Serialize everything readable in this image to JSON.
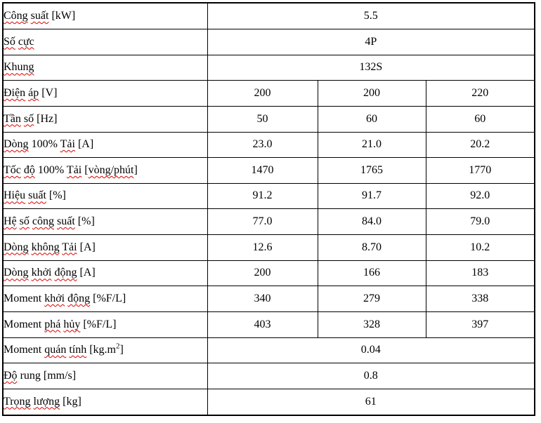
{
  "colors": {
    "border": "#000000",
    "text": "#000000",
    "spellcheck_underline": "#dd0000",
    "background": "#ffffff"
  },
  "table": {
    "rows": [
      {
        "label_text": "Công suất [kW]",
        "label": [
          {
            "t": "Công",
            "e": true
          },
          {
            "t": " "
          },
          {
            "t": "suất",
            "e": true
          },
          {
            "t": " [kW]"
          }
        ],
        "values": [
          "5.5"
        ]
      },
      {
        "label_text": "Số cực",
        "label": [
          {
            "t": "Số",
            "e": true
          },
          {
            "t": " "
          },
          {
            "t": "cực",
            "e": true
          }
        ],
        "values": [
          "4P"
        ]
      },
      {
        "label_text": "Khung",
        "label": [
          {
            "t": "Khung",
            "e": true
          }
        ],
        "values": [
          "132S"
        ]
      },
      {
        "label_text": "Điện áp [V]",
        "label": [
          {
            "t": "Điện",
            "e": true
          },
          {
            "t": " "
          },
          {
            "t": "áp",
            "e": true
          },
          {
            "t": " [V]"
          }
        ],
        "values": [
          "200",
          "200",
          "220"
        ]
      },
      {
        "label_text": "Tần số [Hz]",
        "label": [
          {
            "t": "Tần",
            "e": true
          },
          {
            "t": " "
          },
          {
            "t": "số",
            "e": true
          },
          {
            "t": " [Hz]"
          }
        ],
        "values": [
          "50",
          "60",
          "60"
        ]
      },
      {
        "label_text": "Dòng 100% Tải [A]",
        "label": [
          {
            "t": "Dòng",
            "e": true
          },
          {
            "t": " 100% "
          },
          {
            "t": "Tải",
            "e": true
          },
          {
            "t": " [A]"
          }
        ],
        "values": [
          "23.0",
          "21.0",
          "20.2"
        ]
      },
      {
        "label_text": "Tốc độ 100% Tải [vòng/phút]",
        "label": [
          {
            "t": "Tốc",
            "e": true
          },
          {
            "t": " "
          },
          {
            "t": "độ",
            "e": true
          },
          {
            "t": " 100% "
          },
          {
            "t": "Tải",
            "e": true
          },
          {
            "t": " ["
          },
          {
            "t": "vòng/phút",
            "e": true
          },
          {
            "t": "]"
          }
        ],
        "values": [
          "1470",
          "1765",
          "1770"
        ]
      },
      {
        "label_text": "Hiệu suất [%]",
        "label": [
          {
            "t": "Hiệu",
            "e": true
          },
          {
            "t": " "
          },
          {
            "t": "suất",
            "e": true
          },
          {
            "t": " [%]"
          }
        ],
        "values": [
          "91.2",
          "91.7",
          "92.0"
        ]
      },
      {
        "label_text": "Hệ số công suất [%]",
        "label": [
          {
            "t": "Hệ",
            "e": true
          },
          {
            "t": " "
          },
          {
            "t": "số",
            "e": true
          },
          {
            "t": " "
          },
          {
            "t": "công",
            "e": true
          },
          {
            "t": " "
          },
          {
            "t": "suất",
            "e": true
          },
          {
            "t": " [%]"
          }
        ],
        "values": [
          "77.0",
          "84.0",
          "79.0"
        ]
      },
      {
        "label_text": "Dòng không Tải [A]",
        "label": [
          {
            "t": "Dòng",
            "e": true
          },
          {
            "t": " "
          },
          {
            "t": "không",
            "e": true
          },
          {
            "t": " "
          },
          {
            "t": "Tải",
            "e": true
          },
          {
            "t": " [A]"
          }
        ],
        "values": [
          "12.6",
          "8.70",
          "10.2"
        ]
      },
      {
        "label_text": "Dòng khởi động [A]",
        "label": [
          {
            "t": "Dòng",
            "e": true
          },
          {
            "t": " "
          },
          {
            "t": "khởi",
            "e": true
          },
          {
            "t": " "
          },
          {
            "t": "động",
            "e": true
          },
          {
            "t": " [A]"
          }
        ],
        "values": [
          "200",
          "166",
          "183"
        ]
      },
      {
        "label_text": "Moment khởi động [%F/L]",
        "label": [
          {
            "t": "Moment "
          },
          {
            "t": "khởi",
            "e": true
          },
          {
            "t": " "
          },
          {
            "t": "động",
            "e": true
          },
          {
            "t": " [%F/L]"
          }
        ],
        "values": [
          "340",
          "279",
          "338"
        ]
      },
      {
        "label_text": "Moment phá hủy [%F/L]",
        "label": [
          {
            "t": "Moment "
          },
          {
            "t": "phá",
            "e": true
          },
          {
            "t": " "
          },
          {
            "t": "hủy",
            "e": true
          },
          {
            "t": " [%F/L]"
          }
        ],
        "values": [
          "403",
          "328",
          "397"
        ]
      },
      {
        "label_text": "Moment quán tính [kg.m²]",
        "label": [
          {
            "t": "Moment "
          },
          {
            "t": "quán",
            "e": true
          },
          {
            "t": " "
          },
          {
            "t": "tính",
            "e": true
          },
          {
            "t": " [kg.m"
          },
          {
            "t": "2",
            "sup": true
          },
          {
            "t": "]"
          }
        ],
        "values": [
          "0.04"
        ]
      },
      {
        "label_text": "Độ rung [mm/s]",
        "label": [
          {
            "t": "Độ",
            "e": true
          },
          {
            "t": " rung [mm/s]"
          }
        ],
        "values": [
          "0.8"
        ]
      },
      {
        "label_text": "Trọng lượng [kg]",
        "label": [
          {
            "t": "Trọng",
            "e": true
          },
          {
            "t": " "
          },
          {
            "t": "lượng",
            "e": true
          },
          {
            "t": " [kg]"
          }
        ],
        "values": [
          "61"
        ]
      }
    ]
  }
}
